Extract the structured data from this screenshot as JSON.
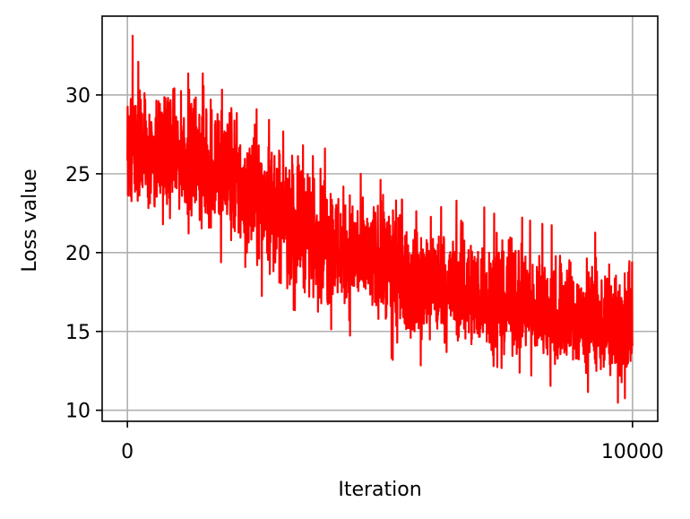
{
  "chart_data": {
    "type": "line",
    "title": "",
    "xlabel": "Iteration",
    "ylabel": "Loss value",
    "xlim": [
      -500,
      10500
    ],
    "ylim": [
      9.3,
      35.0
    ],
    "xticks": [
      0,
      10000
    ],
    "xtick_labels": [
      "0",
      "10000"
    ],
    "yticks": [
      10,
      15,
      20,
      25,
      30
    ],
    "ytick_labels": [
      "10",
      "15",
      "20",
      "25",
      "30"
    ],
    "grid": true,
    "legend": "none",
    "series": [
      {
        "color": "#ff0000",
        "x": [
          0,
          250,
          500,
          750,
          1000,
          1250,
          1500,
          1750,
          2000,
          2250,
          2500,
          2750,
          3000,
          3250,
          3500,
          3750,
          4000,
          4250,
          4500,
          4750,
          5000,
          5250,
          5500,
          5750,
          6000,
          6250,
          6500,
          6750,
          7000,
          7250,
          7500,
          7750,
          8000,
          8250,
          8500,
          8750,
          9000,
          9250,
          9500,
          9750,
          10000
        ],
        "mean": [
          27.0,
          26.8,
          26.6,
          26.4,
          26.1,
          25.9,
          25.6,
          25.2,
          24.8,
          24.3,
          23.8,
          23.3,
          22.7,
          22.2,
          21.7,
          21.1,
          20.6,
          20.2,
          19.8,
          19.4,
          19.0,
          18.7,
          18.4,
          18.1,
          17.8,
          17.6,
          17.4,
          17.2,
          17.0,
          16.8,
          16.6,
          16.4,
          16.2,
          16.0,
          15.8,
          15.6,
          15.5,
          15.4,
          15.3,
          15.2,
          15.1
        ],
        "high": [
          33.8,
          33.7,
          31.8,
          31.6,
          31.2,
          31.4,
          32.6,
          32.5,
          32.4,
          29.4,
          29.3,
          28.4,
          28.5,
          27.4,
          28.9,
          26.8,
          26.5,
          25.4,
          25.5,
          25.1,
          24.6,
          25.0,
          22.8,
          22.6,
          23.4,
          22.8,
          23.3,
          23.2,
          23.0,
          22.5,
          22.0,
          22.3,
          22.0,
          21.8,
          21.7,
          22.0,
          21.1,
          21.3,
          20.6,
          20.2,
          20.8
        ],
        "low": [
          21.1,
          21.5,
          20.5,
          21.0,
          21.3,
          21.2,
          19.5,
          19.8,
          18.8,
          18.2,
          16.6,
          17.6,
          16.6,
          16.4,
          16.2,
          15.6,
          13.6,
          14.8,
          14.7,
          14.4,
          14.6,
          13.2,
          13.0,
          13.1,
          12.0,
          13.8,
          13.4,
          13.2,
          13.0,
          12.8,
          12.6,
          12.4,
          12.2,
          12.0,
          11.1,
          11.9,
          11.3,
          11.0,
          10.9,
          10.4,
          11.3
        ]
      }
    ]
  }
}
